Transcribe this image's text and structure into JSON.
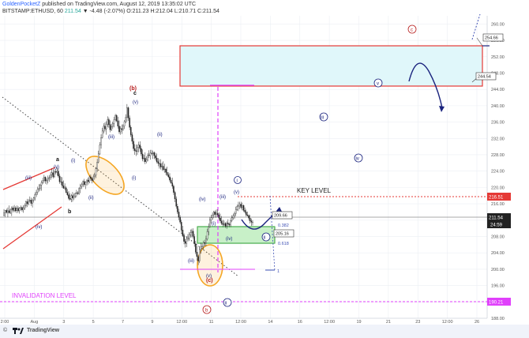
{
  "header": {
    "author": "GoldenPocketZ",
    "published": "published on TradingView.com, August 12, 2019 13:35:02 UTC"
  },
  "symbol_line": {
    "symbol": "BITSTAMP:ETHUSD, 60",
    "last": "211.54",
    "change": "▼ -4.48 (-2.07%)",
    "ohlc": "O:211.23 H:212.04 L:210.71 C:211.54"
  },
  "footer": {
    "copyright": "©",
    "brand": "TradingView",
    "logo": "tradingview-logo"
  },
  "colors": {
    "grid": "#eceff4",
    "candle": "#222222",
    "magenta": "#e040fb",
    "red": "#e53935",
    "blue": "#1a237e",
    "cyan_box": "#e0f7fa",
    "green_box": "#c8f0c8",
    "orange": "#f5a623"
  },
  "chart_data": {
    "type": "candlestick",
    "y_range": [
      188,
      262
    ],
    "y_ticks": [
      "260.00",
      "256.00",
      "252.00",
      "248.00",
      "244.00",
      "240.00",
      "236.00",
      "232.00",
      "228.00",
      "224.00",
      "220.00",
      "216.00",
      "212.00",
      "208.00",
      "204.00",
      "200.00",
      "196.00",
      "192.00",
      "188.00"
    ],
    "x_ticks": [
      "2:00",
      "Aug",
      "3",
      "5",
      "7",
      "9",
      "12:00",
      "11",
      "12:00",
      "14",
      "16",
      "12:00",
      "19",
      "21",
      "23",
      "12:00",
      "26"
    ],
    "price_tags": {
      "high_box": "254.66",
      "low_box": "244.54",
      "key_level": "216.51",
      "last": "211.54",
      "countdown": "24:59",
      "invalidation": "190.21",
      "tag_209": "209.66",
      "tag_205": "205.16"
    },
    "fib": {
      "f1": "0.382",
      "f2": "0.618",
      "f3": "1"
    },
    "texts": {
      "key_level": "KEY LEVEL",
      "invalidation": "INVALIDATION LEVEL"
    },
    "wave_labels": {
      "a": "a",
      "y": "(y)",
      "b": "b",
      "iii": "(iii)",
      "i": "(i)",
      "ii": "(ii)",
      "iv": "(iv)",
      "b_red": "(b)",
      "c": "c",
      "v": "(v)",
      "c_red": "(c)",
      "b_circle": "b",
      "i_circle": "i",
      "ii_circle": "ii",
      "iii_circle": "iii",
      "iv_circle": "iv",
      "v_circle": "v",
      "c_circle": "c"
    },
    "candles": [
      [
        213.2,
        214.7,
        212.9,
        213.8
      ],
      [
        213.8,
        214.5,
        212.8,
        214.4
      ],
      [
        214.4,
        214.8,
        213.6,
        213.9
      ],
      [
        213.9,
        215.1,
        212.7,
        214.3
      ],
      [
        214.3,
        215.6,
        213.6,
        213.8
      ],
      [
        213.8,
        214.9,
        213.5,
        214.6
      ],
      [
        214.6,
        215.4,
        213.0,
        215.0
      ],
      [
        215.0,
        215.5,
        213.9,
        214.4
      ],
      [
        214.4,
        215.7,
        214.0,
        215.0
      ],
      [
        215.0,
        215.4,
        213.9,
        214.3
      ],
      [
        214.3,
        215.6,
        213.7,
        214.9
      ],
      [
        214.9,
        215.4,
        213.9,
        214.3
      ],
      [
        214.3,
        215.2,
        213.6,
        214.9
      ],
      [
        214.9,
        215.6,
        214.4,
        215.1
      ],
      [
        215.1,
        215.3,
        214.1,
        214.5
      ],
      [
        214.5,
        215.7,
        213.8,
        214.9
      ],
      [
        214.9,
        216.1,
        214.5,
        215.5
      ],
      [
        215.5,
        216.8,
        215.0,
        216.5
      ],
      [
        216.5,
        217.2,
        215.2,
        216.0
      ],
      [
        216.0,
        217.2,
        215.6,
        216.7
      ],
      [
        216.7,
        217.8,
        216.3,
        216.9
      ],
      [
        216.9,
        217.5,
        215.5,
        216.1
      ],
      [
        216.1,
        217.3,
        215.1,
        216.9
      ],
      [
        216.9,
        217.7,
        216.3,
        217.4
      ],
      [
        217.4,
        218.8,
        216.8,
        218.3
      ],
      [
        218.3,
        219.4,
        217.7,
        218.8
      ],
      [
        218.8,
        220.2,
        218.2,
        219.6
      ],
      [
        219.6,
        220.8,
        219.0,
        219.8
      ],
      [
        219.8,
        220.9,
        219.2,
        220.6
      ],
      [
        220.6,
        221.7,
        219.2,
        221.2
      ],
      [
        221.2,
        222.4,
        220.9,
        221.7
      ],
      [
        221.7,
        223.1,
        221.2,
        222.5
      ],
      [
        222.5,
        222.7,
        220.9,
        221.6
      ],
      [
        221.6,
        222.2,
        220.7,
        221.8
      ],
      [
        221.8,
        222.9,
        221.0,
        222.3
      ],
      [
        222.3,
        223.0,
        221.4,
        222.4
      ],
      [
        222.4,
        223.8,
        221.8,
        223.1
      ],
      [
        223.1,
        224.7,
        222.3,
        223.6
      ],
      [
        223.6,
        224.5,
        222.2,
        222.6
      ],
      [
        222.6,
        224.3,
        222.4,
        223.9
      ],
      [
        223.9,
        224.4,
        223.2,
        223.7
      ],
      [
        223.7,
        225.0,
        222.9,
        224.0
      ],
      [
        224.0,
        224.7,
        222.4,
        222.8
      ],
      [
        222.8,
        223.4,
        220.9,
        221.4
      ],
      [
        221.4,
        222.6,
        220.6,
        221.4
      ],
      [
        221.4,
        222.5,
        219.9,
        220.4
      ],
      [
        220.4,
        221.7,
        219.7,
        219.8
      ],
      [
        219.8,
        221.0,
        219.3,
        219.9
      ],
      [
        219.9,
        220.3,
        218.6,
        218.8
      ],
      [
        218.8,
        219.6,
        217.9,
        218.2
      ],
      [
        218.2,
        219.1,
        216.9,
        217.3
      ],
      [
        217.3,
        218.6,
        216.8,
        217.1
      ],
      [
        217.1,
        218.4,
        216.4,
        218.0
      ],
      [
        218.0,
        218.9,
        216.5,
        217.4
      ],
      [
        217.4,
        218.5,
        216.9,
        217.9
      ],
      [
        217.9,
        218.7,
        217.4,
        218.6
      ],
      [
        218.6,
        219.4,
        217.6,
        218.7
      ],
      [
        218.7,
        219.1,
        218.1,
        218.5
      ],
      [
        218.5,
        220.1,
        218.2,
        219.8
      ],
      [
        219.8,
        220.9,
        218.6,
        220.3
      ],
      [
        220.3,
        221.2,
        219.6,
        220.7
      ],
      [
        220.7,
        221.7,
        220.1,
        221.5
      ],
      [
        221.5,
        222.1,
        220.2,
        220.7
      ],
      [
        220.7,
        221.5,
        219.6,
        221.3
      ],
      [
        221.3,
        222.0,
        220.4,
        221.8
      ],
      [
        221.8,
        222.4,
        220.7,
        221.4
      ],
      [
        221.4,
        223.0,
        221.0,
        222.6
      ],
      [
        222.6,
        223.2,
        221.6,
        222.2
      ],
      [
        222.2,
        222.5,
        221.0,
        221.7
      ],
      [
        221.7,
        223.2,
        221.3,
        222.6
      ],
      [
        222.6,
        223.6,
        221.9,
        223.0
      ],
      [
        223.0,
        225.0,
        222.3,
        224.6
      ],
      [
        224.6,
        227.0,
        223.8,
        226.2
      ],
      [
        226.2,
        229.0,
        225.9,
        228.2
      ],
      [
        228.2,
        231.1,
        228.0,
        230.4
      ],
      [
        230.4,
        233.0,
        229.5,
        232.2
      ],
      [
        232.2,
        234.6,
        232.0,
        233.8
      ],
      [
        233.8,
        235.7,
        233.2,
        235.0
      ],
      [
        235.0,
        235.9,
        233.7,
        234.3
      ],
      [
        234.3,
        236.2,
        232.9,
        235.5
      ],
      [
        235.5,
        237.4,
        234.8,
        236.6
      ],
      [
        236.6,
        237.1,
        234.6,
        235.4
      ],
      [
        235.4,
        236.4,
        233.5,
        234.1
      ],
      [
        234.1,
        235.6,
        233.8,
        234.9
      ],
      [
        234.9,
        236.1,
        234.3,
        235.7
      ],
      [
        235.7,
        237.3,
        234.7,
        236.6
      ],
      [
        236.6,
        238.0,
        236.2,
        237.6
      ],
      [
        237.6,
        237.9,
        236.0,
        236.3
      ],
      [
        236.3,
        237.3,
        234.4,
        235.0
      ],
      [
        235.0,
        236.4,
        233.1,
        233.6
      ],
      [
        233.6,
        235.0,
        232.9,
        234.4
      ],
      [
        234.4,
        235.4,
        233.1,
        234.2
      ],
      [
        234.2,
        235.5,
        233.8,
        235.0
      ],
      [
        235.0,
        236.5,
        234.3,
        236.1
      ],
      [
        236.1,
        237.9,
        235.7,
        237.2
      ],
      [
        237.2,
        240.4,
        236.1,
        239.5
      ],
      [
        239.5,
        239.8,
        236.3,
        237.0
      ],
      [
        237.0,
        237.6,
        234.0,
        234.7
      ],
      [
        234.7,
        235.2,
        232.4,
        232.9
      ],
      [
        232.9,
        233.5,
        230.6,
        231.3
      ],
      [
        231.3,
        232.1,
        228.9,
        229.5
      ],
      [
        229.5,
        230.6,
        228.0,
        229.0
      ],
      [
        229.0,
        230.5,
        227.7,
        228.8
      ],
      [
        228.8,
        230.5,
        228.0,
        229.8
      ],
      [
        229.8,
        231.2,
        228.6,
        230.4
      ],
      [
        230.4,
        231.3,
        228.7,
        229.5
      ],
      [
        229.5,
        230.1,
        227.7,
        228.2
      ],
      [
        228.2,
        229.3,
        226.4,
        227.0
      ],
      [
        227.0,
        228.0,
        226.2,
        227.2
      ],
      [
        227.2,
        228.6,
        225.7,
        226.3
      ],
      [
        226.3,
        227.6,
        225.9,
        226.8
      ],
      [
        226.8,
        228.4,
        226.4,
        227.9
      ],
      [
        227.9,
        229.1,
        227.2,
        227.8
      ],
      [
        227.8,
        229.2,
        226.8,
        228.4
      ],
      [
        228.4,
        229.2,
        227.9,
        228.3
      ],
      [
        228.3,
        229.0,
        227.0,
        228.5
      ],
      [
        228.5,
        228.8,
        227.0,
        227.8
      ],
      [
        227.8,
        228.5,
        226.6,
        227.2
      ],
      [
        227.2,
        228.3,
        225.9,
        226.3
      ],
      [
        226.3,
        227.2,
        225.2,
        225.9
      ],
      [
        225.9,
        226.9,
        224.6,
        225.8
      ],
      [
        225.8,
        226.9,
        224.4,
        225.0
      ],
      [
        225.0,
        226.1,
        224.2,
        225.2
      ],
      [
        225.2,
        226.4,
        224.0,
        224.4
      ],
      [
        224.4,
        225.8,
        223.6,
        224.5
      ],
      [
        224.5,
        224.8,
        223.0,
        223.7
      ],
      [
        223.7,
        225.1,
        222.8,
        223.1
      ],
      [
        223.1,
        223.7,
        222.3,
        222.6
      ],
      [
        222.6,
        223.5,
        221.3,
        221.8
      ],
      [
        221.8,
        222.4,
        220.9,
        221.1
      ],
      [
        221.1,
        222.4,
        219.7,
        220.3
      ],
      [
        220.3,
        220.7,
        218.2,
        218.8
      ],
      [
        218.8,
        219.2,
        216.4,
        217.2
      ],
      [
        217.2,
        217.8,
        214.8,
        215.4
      ],
      [
        215.4,
        216.0,
        213.5,
        214.0
      ],
      [
        214.0,
        214.8,
        212.0,
        212.7
      ],
      [
        212.7,
        213.2,
        211.0,
        211.5
      ],
      [
        211.5,
        212.1,
        209.1,
        209.6
      ],
      [
        209.6,
        210.6,
        207.9,
        208.2
      ],
      [
        208.2,
        208.8,
        206.1,
        206.8
      ],
      [
        206.8,
        207.4,
        205.3,
        206.3
      ],
      [
        206.3,
        208.0,
        205.4,
        207.4
      ],
      [
        207.4,
        208.6,
        206.8,
        207.9
      ],
      [
        207.9,
        209.1,
        206.9,
        208.4
      ],
      [
        208.4,
        209.7,
        207.7,
        208.9
      ],
      [
        208.9,
        209.9,
        207.8,
        209.3
      ],
      [
        209.3,
        210.0,
        207.5,
        208.0
      ],
      [
        208.0,
        208.6,
        205.5,
        206.2
      ],
      [
        206.2,
        206.9,
        203.7,
        204.2
      ],
      [
        204.2,
        205.7,
        202.1,
        203.1
      ],
      [
        203.1,
        203.5,
        201.0,
        202.0
      ],
      [
        202.0,
        205.4,
        201.5,
        204.8
      ],
      [
        204.8,
        206.5,
        203.8,
        205.5
      ],
      [
        205.5,
        206.2,
        204.8,
        205.6
      ],
      [
        205.6,
        207.0,
        204.7,
        206.5
      ],
      [
        206.5,
        207.2,
        205.6,
        206.4
      ],
      [
        206.4,
        208.2,
        205.6,
        207.4
      ],
      [
        207.4,
        209.9,
        207.0,
        209.2
      ],
      [
        209.2,
        211.2,
        208.3,
        210.4
      ],
      [
        210.4,
        212.8,
        210.1,
        212.0
      ],
      [
        212.0,
        213.3,
        211.2,
        212.6
      ],
      [
        212.6,
        213.9,
        212.1,
        213.3
      ],
      [
        213.3,
        214.3,
        212.5,
        214.0
      ],
      [
        214.0,
        214.4,
        212.6,
        213.4
      ],
      [
        213.4,
        214.6,
        212.6,
        213.7
      ],
      [
        213.7,
        214.7,
        212.8,
        213.3
      ],
      [
        213.3,
        213.9,
        212.0,
        212.5
      ],
      [
        212.5,
        213.6,
        211.3,
        211.8
      ],
      [
        211.8,
        213.0,
        210.8,
        211.2
      ],
      [
        211.2,
        212.1,
        210.3,
        210.9
      ],
      [
        210.9,
        211.9,
        210.6,
        211.2
      ],
      [
        211.2,
        211.5,
        210.1,
        210.5
      ],
      [
        210.5,
        211.7,
        209.9,
        211.3
      ],
      [
        211.3,
        212.2,
        210.4,
        211.0
      ],
      [
        211.0,
        211.4,
        210.3,
        210.8
      ],
      [
        210.8,
        212.5,
        210.3,
        211.9
      ],
      [
        211.9,
        213.2,
        211.5,
        212.6
      ],
      [
        212.6,
        213.6,
        212.1,
        213.1
      ],
      [
        213.1,
        214.1,
        212.3,
        213.6
      ],
      [
        213.6,
        215.3,
        213.0,
        214.6
      ],
      [
        214.6,
        215.8,
        214.3,
        215.4
      ],
      [
        215.4,
        216.5,
        214.2,
        215.5
      ],
      [
        215.5,
        216.5,
        214.7,
        215.9
      ],
      [
        215.9,
        216.5,
        214.7,
        215.1
      ],
      [
        215.1,
        216.3,
        214.4,
        215.6
      ],
      [
        215.6,
        215.8,
        214.0,
        214.4
      ],
      [
        214.4,
        215.1,
        213.6,
        214.0
      ],
      [
        214.0,
        214.6,
        212.9,
        213.3
      ],
      [
        213.3,
        214.1,
        212.9,
        213.1
      ],
      [
        213.1,
        213.4,
        211.9,
        212.5
      ],
      [
        212.5,
        213.3,
        211.2,
        211.8
      ],
      [
        211.8,
        212.4,
        210.6,
        211.5
      ],
      [
        211.5,
        212.0,
        210.7,
        211.5
      ]
    ]
  }
}
